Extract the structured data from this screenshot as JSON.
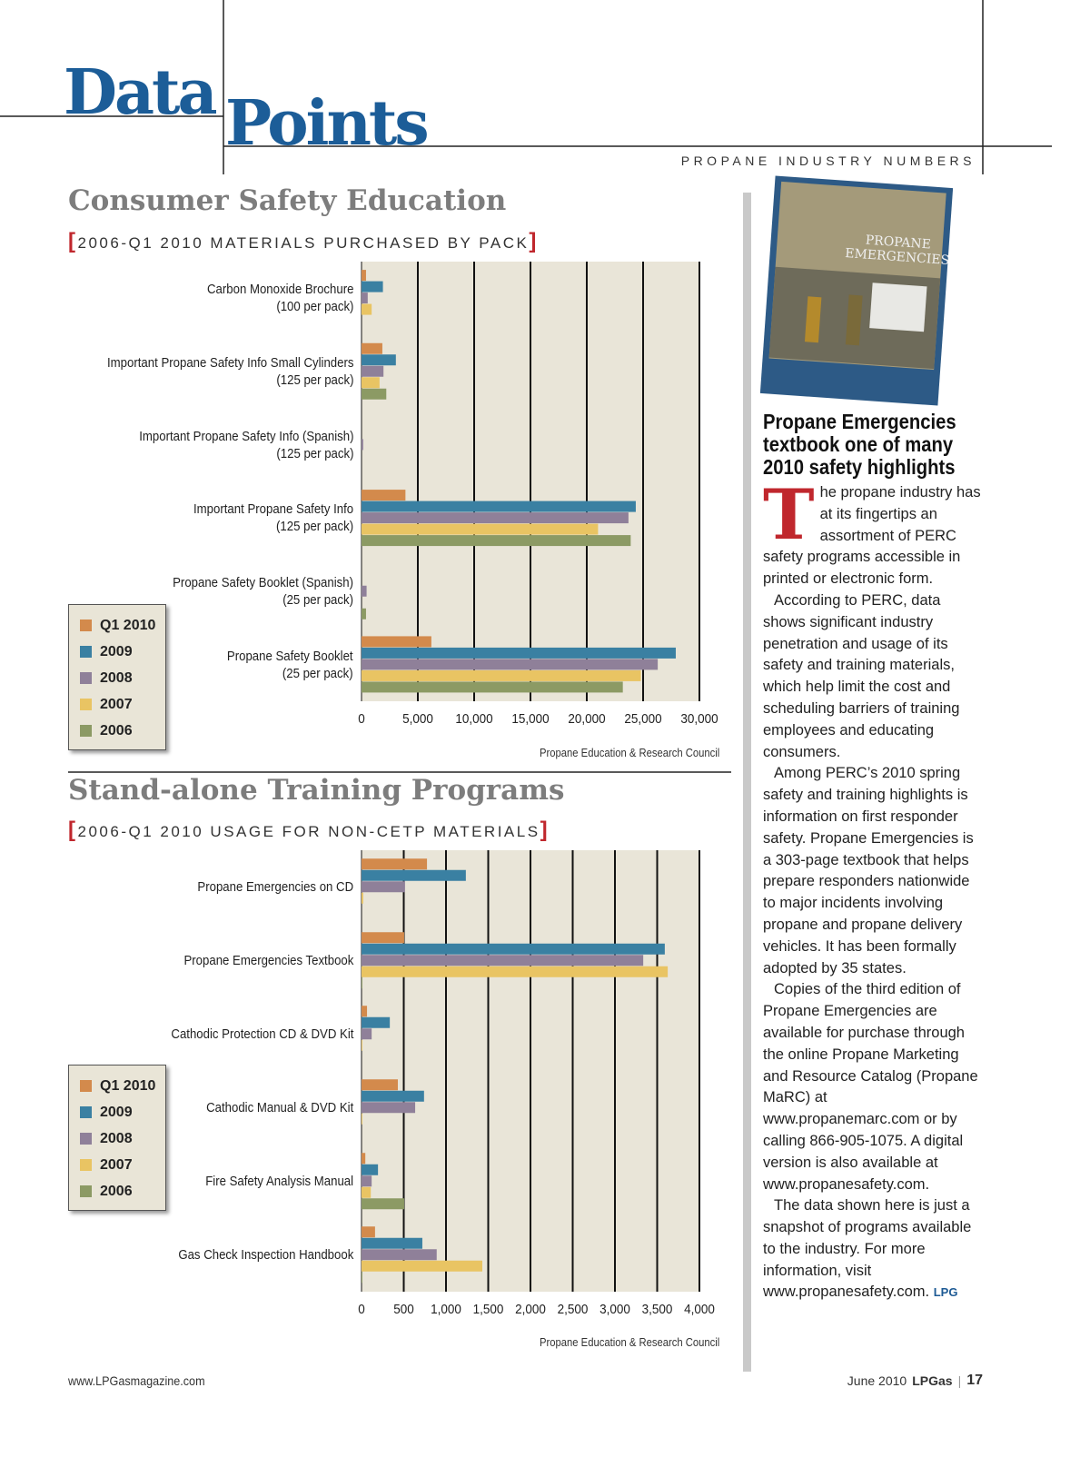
{
  "header": {
    "title_1": "Data",
    "title_2": "Points",
    "kicker": "PROPANE INDUSTRY NUMBERS"
  },
  "chart_data": [
    {
      "type": "bar",
      "orientation": "horizontal",
      "title": "Consumer Safety Education",
      "subtitle": "2006-Q1 2010 MATERIALS PURCHASED BY PACK",
      "source": "Propane Education & Research Council",
      "categories": [
        "Carbon Monoxide Brochure\n(100 per pack)",
        "Important Propane Safety Info Small Cylinders\n(125 per pack)",
        "Important Propane Safety Info (Spanish)\n(125 per pack)",
        "Important Propane Safety Info\n(125 per pack)",
        "Propane Safety Booklet (Spanish)\n(25 per pack)",
        "Propane Safety Booklet\n(25 per pack)"
      ],
      "series": [
        {
          "name": "Q1 2010",
          "color": "#d38a4c",
          "values": [
            400,
            1850,
            0,
            3900,
            0,
            6200
          ]
        },
        {
          "name": "2009",
          "color": "#3a80a2",
          "values": [
            1900,
            3050,
            0,
            24350,
            0,
            27900
          ]
        },
        {
          "name": "2008",
          "color": "#8f8099",
          "values": [
            550,
            1950,
            150,
            23700,
            450,
            26300
          ]
        },
        {
          "name": "2007",
          "color": "#e9c463",
          "values": [
            900,
            1600,
            0,
            21000,
            0,
            24800
          ]
        },
        {
          "name": "2006",
          "color": "#8c9a64",
          "values": [
            0,
            2200,
            0,
            23900,
            400,
            23200
          ]
        }
      ],
      "xlim": [
        0,
        30000
      ],
      "xticks": [
        0,
        {
          "value": 5000,
          "label": "5,000"
        },
        {
          "value": 10000,
          "label": "10,000"
        },
        {
          "value": 15000,
          "label": "15,000"
        },
        {
          "value": 20000,
          "label": "20,000"
        },
        {
          "value": 25000,
          "label": "25,000"
        },
        {
          "value": 30000,
          "label": "30,000"
        }
      ],
      "grid": true,
      "legend": "left"
    },
    {
      "type": "bar",
      "orientation": "horizontal",
      "title": "Stand-alone Training Programs",
      "subtitle": "2006-Q1 2010 USAGE FOR NON-CETP MATERIALS",
      "source": "Propane Education & Research Council",
      "categories": [
        "Propane Emergencies on CD",
        "Propane Emergencies Textbook",
        "Cathodic Protection CD & DVD Kit",
        "Cathodic Manual & DVD Kit",
        "Fire Safety Analysis Manual",
        "Gas Check Inspection Handbook"
      ],
      "series": [
        {
          "name": "Q1 2010",
          "color": "#d38a4c",
          "values": [
            775,
            505,
            65,
            430,
            45,
            160
          ]
        },
        {
          "name": "2009",
          "color": "#3a80a2",
          "values": [
            1235,
            3590,
            335,
            740,
            195,
            720
          ]
        },
        {
          "name": "2008",
          "color": "#8f8099",
          "values": [
            515,
            3335,
            120,
            635,
            120,
            890
          ]
        },
        {
          "name": "2007",
          "color": "#e9c463",
          "values": [
            20,
            3625,
            10,
            10,
            110,
            1430
          ]
        },
        {
          "name": "2006",
          "color": "#8c9a64",
          "values": [
            0,
            10,
            0,
            0,
            505,
            10
          ]
        }
      ],
      "xlim": [
        0,
        4000
      ],
      "xticks": [
        0,
        500,
        {
          "value": 1000,
          "label": "1,000"
        },
        {
          "value": 1500,
          "label": "1,500"
        },
        {
          "value": 2000,
          "label": "2,000"
        },
        {
          "value": 2500,
          "label": "2,500"
        },
        {
          "value": 3000,
          "label": "3,000"
        },
        {
          "value": 3500,
          "label": "3,500"
        },
        {
          "value": 4000,
          "label": "4,000"
        }
      ],
      "grid": true,
      "legend": "left"
    }
  ],
  "article": {
    "cover_title": "PROPANE\nEMERGENCIES",
    "heading": "Propane Emergencies textbook one of many 2010 safety highlights",
    "drop_cap": "T",
    "paragraphs": [
      "he propane industry has at its fingertips an assortment of PERC safety programs accessible in printed or electronic form.",
      "According to PERC, data shows significant industry penetration and usage of its safety and training materials, which help limit the cost and scheduling barriers of training employees and educating consumers.",
      "Among PERC’s 2010 spring safety and training highlights is information on first responder safety. Propane Emergencies is a 303-page textbook that helps prepare responders nationwide to major incidents involving propane and propane delivery vehicles. It has been formally adopted by 35 states.",
      "Copies of the third edition of Propane Emergencies are available for purchase through the online Propane Marketing and Resource Catalog (Propane MaRC) at www.propanemarc.com or by calling 866-905-1075. A digital version is also available at www.propanesafety.com.",
      "The data shown here is just a snapshot of programs available to the industry. For more information, visit www.propanesafety.com."
    ],
    "signoff": "LPG"
  },
  "footer": {
    "site": "www.LPGasmagazine.com",
    "date": "June 2010",
    "magazine": "LPGas",
    "page": "17"
  }
}
